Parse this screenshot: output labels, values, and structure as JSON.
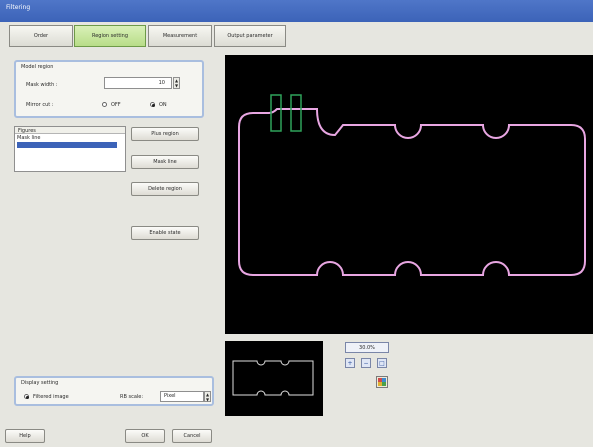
{
  "window": {
    "title": "Filtering"
  },
  "tabs": [
    {
      "label": "Order"
    },
    {
      "label": "Region setting"
    },
    {
      "label": "Measurement"
    },
    {
      "label": "Output parameter"
    }
  ],
  "model_region": {
    "title": "Model region",
    "mask_width_label": "Mask width :",
    "mask_width_value": "10",
    "mirror_cut_label": "Mirror cut :",
    "options": [
      "OFF",
      "ON"
    ],
    "selected": "ON"
  },
  "figure_list": {
    "header": "Figures",
    "items": [
      "Mask line"
    ]
  },
  "buttons": {
    "plus_region": "Plus region",
    "mask_line": "Mask line",
    "delete_region": "Delete region",
    "enable_state": "Enable state",
    "help": "Help",
    "ok": "OK",
    "cancel": "Cancel"
  },
  "display_setting": {
    "title": "Display setting",
    "option_label": "Filtered image",
    "zoom_label": "RB scale:",
    "zoom_value": "Pixel"
  },
  "preview": {
    "zoom_readout": "30.0%",
    "zoom_in_glyph": "+",
    "zoom_out_glyph": "−",
    "fit_glyph": "□"
  },
  "colors": {
    "canvas_bg": "#000000",
    "contour": "#e8a6e2",
    "mask_rect": "#2fa25a",
    "accent": "#3c63b8"
  }
}
